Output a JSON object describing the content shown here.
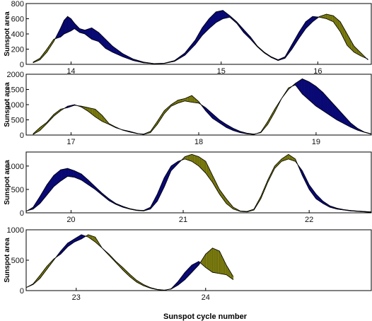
{
  "figure": {
    "xlabel": "Sunspot cycle number"
  },
  "colors": {
    "north": "#0a0a7e",
    "south": "#7f7f10",
    "frame": "#000000"
  },
  "chart_data": [
    {
      "type": "area",
      "ylabel": "Sunspot area",
      "ylim": [
        0,
        800
      ],
      "yticks": [
        0,
        200,
        400,
        600,
        800
      ],
      "cycles": [
        "14",
        "15",
        "16"
      ],
      "series": [
        {
          "name": "",
          "values": [
            0.02,
            20,
            0.04,
            60,
            0.06,
            160,
            0.08,
            300,
            0.1,
            480,
            0.11,
            580,
            0.12,
            630,
            0.13,
            600,
            0.14,
            540,
            0.155,
            470,
            0.17,
            450,
            0.19,
            480,
            0.21,
            420,
            0.23,
            330,
            0.25,
            240,
            0.28,
            140,
            0.31,
            70,
            0.34,
            30,
            0.37,
            10,
            0.4,
            15,
            0.43,
            50,
            0.46,
            150,
            0.49,
            320,
            0.51,
            480,
            0.53,
            600,
            0.55,
            690,
            0.57,
            710,
            0.59,
            640,
            0.61,
            560,
            0.63,
            460,
            0.65,
            360,
            0.67,
            240,
            0.69,
            160,
            0.71,
            100,
            0.73,
            60,
            0.75,
            100,
            0.77,
            260,
            0.79,
            420,
            0.81,
            560,
            0.83,
            630,
            0.85,
            620,
            0.87,
            600,
            0.89,
            560,
            0.91,
            430,
            0.93,
            250,
            0.95,
            160,
            0.97,
            110,
            0.99,
            70
          ]
        },
        {
          "name": "",
          "values": [
            0.02,
            30,
            0.04,
            80,
            0.06,
            200,
            0.08,
            330,
            0.1,
            360,
            0.11,
            400,
            0.12,
            420,
            0.13,
            440,
            0.14,
            470,
            0.155,
            420,
            0.17,
            400,
            0.19,
            330,
            0.21,
            300,
            0.23,
            210,
            0.25,
            160,
            0.28,
            100,
            0.31,
            50,
            0.34,
            20,
            0.37,
            8,
            0.4,
            12,
            0.43,
            40,
            0.46,
            120,
            0.49,
            260,
            0.51,
            380,
            0.53,
            470,
            0.55,
            550,
            0.57,
            600,
            0.59,
            620,
            0.61,
            540,
            0.63,
            420,
            0.65,
            330,
            0.67,
            230,
            0.69,
            150,
            0.71,
            90,
            0.73,
            50,
            0.75,
            80,
            0.77,
            200,
            0.79,
            340,
            0.81,
            470,
            0.83,
            560,
            0.85,
            630,
            0.87,
            660,
            0.89,
            640,
            0.91,
            560,
            0.93,
            400,
            0.95,
            240,
            0.97,
            150,
            0.99,
            60
          ]
        }
      ]
    },
    {
      "type": "area",
      "ylabel": "Sunspot area",
      "ylim": [
        0,
        2000
      ],
      "yticks": [
        0,
        500,
        1000,
        1500,
        2000
      ],
      "cycles": [
        "17",
        "18",
        "19"
      ],
      "series": [
        {
          "name": "",
          "values": [
            0.02,
            20,
            0.04,
            150,
            0.06,
            380,
            0.08,
            620,
            0.1,
            800,
            0.12,
            950,
            0.14,
            1000,
            0.16,
            920,
            0.18,
            780,
            0.2,
            600,
            0.22,
            450,
            0.24,
            350,
            0.26,
            240,
            0.28,
            170,
            0.3,
            120,
            0.32,
            60,
            0.34,
            20,
            0.36,
            80,
            0.38,
            350,
            0.4,
            700,
            0.42,
            950,
            0.44,
            1050,
            0.46,
            1120,
            0.48,
            1080,
            0.5,
            1050,
            0.52,
            900,
            0.54,
            700,
            0.56,
            500,
            0.58,
            350,
            0.6,
            220,
            0.62,
            120,
            0.64,
            60,
            0.66,
            30,
            0.68,
            80,
            0.7,
            350,
            0.72,
            750,
            0.74,
            1200,
            0.76,
            1500,
            0.78,
            1700,
            0.8,
            1850,
            0.82,
            1750,
            0.84,
            1600,
            0.86,
            1400,
            0.88,
            1150,
            0.9,
            900,
            0.92,
            650,
            0.94,
            400,
            0.96,
            220,
            0.98,
            100,
            1.0,
            40
          ]
        },
        {
          "name": "",
          "values": [
            0.02,
            40,
            0.04,
            250,
            0.06,
            420,
            0.08,
            680,
            0.1,
            850,
            0.12,
            900,
            0.14,
            980,
            0.16,
            950,
            0.18,
            900,
            0.2,
            850,
            0.22,
            650,
            0.24,
            380,
            0.26,
            260,
            0.28,
            160,
            0.3,
            100,
            0.32,
            50,
            0.34,
            30,
            0.36,
            120,
            0.38,
            450,
            0.4,
            800,
            0.42,
            1000,
            0.44,
            1150,
            0.46,
            1200,
            0.48,
            1300,
            0.5,
            1100,
            0.52,
            800,
            0.54,
            550,
            0.56,
            400,
            0.58,
            250,
            0.6,
            150,
            0.62,
            80,
            0.64,
            40,
            0.66,
            20,
            0.68,
            100,
            0.7,
            450,
            0.72,
            850,
            0.74,
            1200,
            0.76,
            1550,
            0.78,
            1650,
            0.8,
            1350,
            0.82,
            1150,
            0.84,
            950,
            0.86,
            800,
            0.88,
            650,
            0.9,
            500,
            0.92,
            380,
            0.94,
            260,
            0.96,
            160,
            0.98,
            90,
            1.0,
            30
          ]
        }
      ]
    },
    {
      "type": "area",
      "ylabel": "Sunspot area",
      "ylim": [
        0,
        1300
      ],
      "yticks": [
        0,
        500,
        1000
      ],
      "cycles": [
        "20",
        "21",
        "22"
      ],
      "series": [
        {
          "name": "",
          "values": [
            0.0,
            30,
            0.02,
            120,
            0.04,
            350,
            0.06,
            600,
            0.08,
            800,
            0.1,
            920,
            0.12,
            950,
            0.14,
            900,
            0.16,
            830,
            0.18,
            700,
            0.2,
            560,
            0.22,
            420,
            0.24,
            300,
            0.26,
            200,
            0.28,
            140,
            0.3,
            90,
            0.32,
            60,
            0.34,
            50,
            0.36,
            120,
            0.38,
            400,
            0.4,
            750,
            0.42,
            1000,
            0.44,
            1100,
            0.46,
            1150,
            0.48,
            1100,
            0.5,
            1000,
            0.52,
            850,
            0.54,
            650,
            0.56,
            400,
            0.58,
            200,
            0.6,
            80,
            0.62,
            30,
            0.64,
            20,
            0.66,
            60,
            0.68,
            300,
            0.7,
            650,
            0.72,
            950,
            0.74,
            1100,
            0.76,
            1150,
            0.78,
            1100,
            0.8,
            900,
            0.82,
            600,
            0.84,
            400,
            0.86,
            250,
            0.88,
            150,
            0.9,
            100,
            0.92,
            70,
            0.94,
            50,
            0.96,
            40,
            0.98,
            30,
            1.0,
            20
          ]
        },
        {
          "name": "",
          "values": [
            0.0,
            40,
            0.02,
            80,
            0.04,
            200,
            0.06,
            380,
            0.08,
            560,
            0.1,
            680,
            0.12,
            780,
            0.14,
            760,
            0.16,
            700,
            0.18,
            600,
            0.2,
            500,
            0.22,
            380,
            0.24,
            260,
            0.26,
            180,
            0.28,
            120,
            0.3,
            80,
            0.32,
            50,
            0.34,
            40,
            0.36,
            80,
            0.38,
            250,
            0.4,
            550,
            0.42,
            900,
            0.44,
            1050,
            0.46,
            1200,
            0.48,
            1250,
            0.5,
            1200,
            0.52,
            1100,
            0.54,
            800,
            0.56,
            500,
            0.58,
            300,
            0.6,
            120,
            0.62,
            40,
            0.64,
            30,
            0.66,
            80,
            0.68,
            350,
            0.7,
            700,
            0.72,
            1000,
            0.74,
            1150,
            0.76,
            1250,
            0.78,
            1150,
            0.8,
            800,
            0.82,
            500,
            0.84,
            300,
            0.86,
            200,
            0.88,
            120,
            0.9,
            80,
            0.92,
            60,
            0.94,
            40,
            0.96,
            30,
            0.98,
            20,
            1.0,
            10
          ]
        }
      ]
    },
    {
      "type": "area",
      "ylabel": "Sunspot area",
      "ylim": [
        0,
        1000
      ],
      "yticks": [
        0,
        500,
        1000
      ],
      "cycles": [
        "23",
        "24"
      ],
      "series": [
        {
          "name": "",
          "values": [
            0.0,
            50,
            0.02,
            100,
            0.04,
            200,
            0.06,
            350,
            0.08,
            500,
            0.1,
            650,
            0.12,
            780,
            0.14,
            850,
            0.16,
            920,
            0.18,
            880,
            0.2,
            800,
            0.22,
            700,
            0.24,
            580,
            0.26,
            460,
            0.28,
            340,
            0.3,
            230,
            0.32,
            140,
            0.34,
            80,
            0.36,
            40,
            0.38,
            15,
            0.4,
            5,
            0.42,
            30,
            0.44,
            150,
            0.46,
            300,
            0.48,
            420,
            0.5,
            480,
            0.52,
            380,
            0.54,
            300,
            0.56,
            280,
            0.58,
            260,
            0.6,
            180
          ]
        },
        {
          "name": "",
          "values": [
            0.0,
            50,
            0.02,
            110,
            0.04,
            250,
            0.06,
            400,
            0.08,
            520,
            0.1,
            600,
            0.12,
            720,
            0.14,
            800,
            0.16,
            850,
            0.18,
            920,
            0.2,
            880,
            0.22,
            700,
            0.24,
            600,
            0.26,
            480,
            0.28,
            380,
            0.3,
            270,
            0.32,
            170,
            0.34,
            100,
            0.36,
            50,
            0.38,
            20,
            0.4,
            8,
            0.42,
            25,
            0.44,
            90,
            0.46,
            180,
            0.48,
            300,
            0.5,
            420,
            0.52,
            600,
            0.54,
            700,
            0.56,
            650,
            0.58,
            420,
            0.6,
            230
          ]
        }
      ]
    }
  ]
}
